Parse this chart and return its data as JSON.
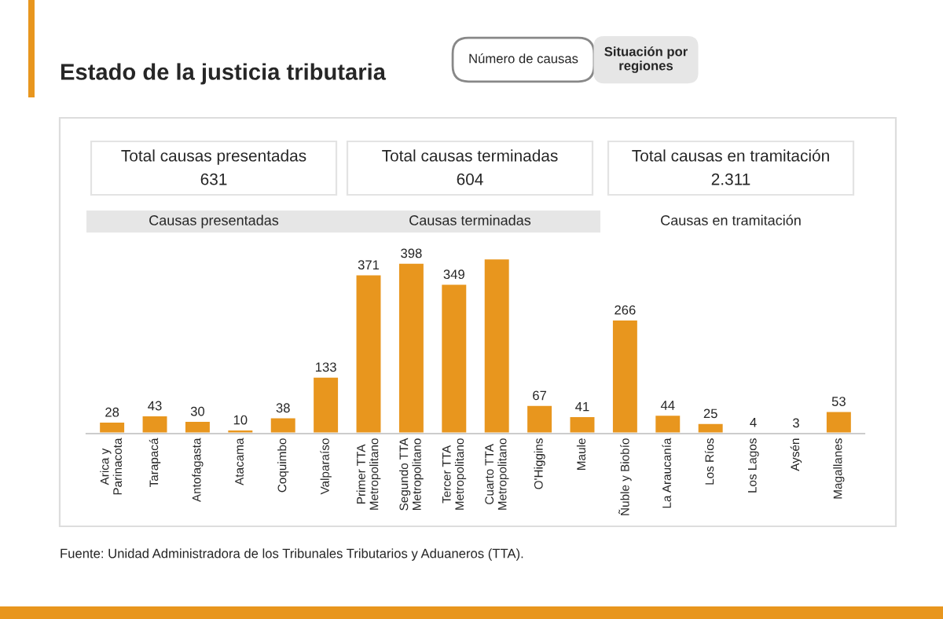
{
  "chart_data": {
    "type": "bar",
    "title": "Estado de la justicia tributaria",
    "categories": [
      "Arica y\nParinacota",
      "Tarapacá",
      "Antofagasta",
      "Atacama",
      "Coquimbo",
      "Valparaíso",
      "Primer TTA\nMetropolitano",
      "Segundo TTA\nMetropolitano",
      "Tercer TTA\nMetropolitano",
      "Cuarto TTA\nMetropolitano",
      "O'Higgins",
      "Maule",
      "Ñuble y Biobío",
      "La Araucanía",
      "Los Ríos",
      "Los Lagos",
      "Aysén",
      "Magallanes"
    ],
    "values": [
      28,
      43,
      30,
      10,
      38,
      133,
      371,
      398,
      349,
      408,
      67,
      41,
      266,
      44,
      25,
      4,
      3,
      53
    ],
    "value_labels": [
      "28",
      "43",
      "30",
      "10",
      "38",
      "133",
      "371",
      "398",
      "349",
      null,
      "67",
      "41",
      "266",
      "44",
      "25",
      "4",
      "3",
      "53"
    ],
    "color": "#e8961e",
    "grid": false,
    "annotations": [
      "Número de causas",
      "Situación por\nregiones",
      "Total causas presentadas",
      "631",
      "Total causas terminadas",
      "604",
      "Total causas en tramitación",
      "2.311",
      "Causas presentadas",
      "Causas terminadas",
      "Causas en tramitación",
      "Fuente: Unidad Administradora de los Tribunales Tributarios y Aduaneros (TTA)."
    ]
  }
}
